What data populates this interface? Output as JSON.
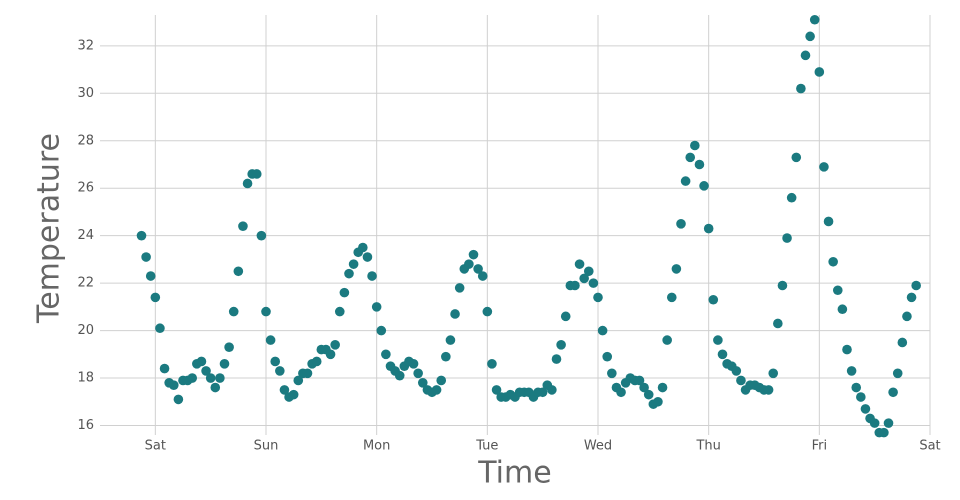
{
  "chart_data": {
    "type": "scatter",
    "x_label": "Time",
    "y_label": "Temperature",
    "color": "#1b7a80",
    "grid": true,
    "xlim": [
      -12,
      168
    ],
    "ylim": [
      15.6,
      33.3
    ],
    "xticks": [
      {
        "value": 0,
        "label": "Sat"
      },
      {
        "value": 24,
        "label": "Sun"
      },
      {
        "value": 48,
        "label": "Mon"
      },
      {
        "value": 72,
        "label": "Tue"
      },
      {
        "value": 96,
        "label": "Wed"
      },
      {
        "value": 120,
        "label": "Thu"
      },
      {
        "value": 144,
        "label": "Fri"
      },
      {
        "value": 168,
        "label": "Sat"
      }
    ],
    "yticks": [
      16,
      18,
      20,
      22,
      24,
      26,
      28,
      30,
      32
    ],
    "x": [
      -3,
      -2,
      -1,
      0,
      1,
      2,
      3,
      4,
      5,
      6,
      7,
      8,
      9,
      10,
      11,
      12,
      13,
      14,
      15,
      16,
      17,
      18,
      19,
      20,
      21,
      22,
      23,
      24,
      25,
      26,
      27,
      28,
      29,
      30,
      31,
      32,
      33,
      34,
      35,
      36,
      37,
      38,
      39,
      40,
      41,
      42,
      43,
      44,
      45,
      46,
      47,
      48,
      49,
      50,
      51,
      52,
      53,
      54,
      55,
      56,
      57,
      58,
      59,
      60,
      61,
      62,
      63,
      64,
      65,
      66,
      67,
      68,
      69,
      70,
      71,
      72,
      73,
      74,
      75,
      76,
      77,
      78,
      79,
      80,
      81,
      82,
      83,
      84,
      85,
      86,
      87,
      88,
      89,
      90,
      91,
      92,
      93,
      94,
      95,
      96,
      97,
      98,
      99,
      100,
      101,
      102,
      103,
      104,
      105,
      106,
      107,
      108,
      109,
      110,
      111,
      112,
      113,
      114,
      115,
      116,
      117,
      118,
      119,
      120,
      121,
      122,
      123,
      124,
      125,
      126,
      127,
      128,
      129,
      130,
      131,
      132,
      133,
      134,
      135,
      136,
      137,
      138,
      139,
      140,
      141,
      142,
      143,
      144,
      145,
      146,
      147,
      148,
      149,
      150,
      151,
      152,
      153,
      154,
      155,
      156,
      157,
      158,
      159,
      160,
      161,
      162,
      163,
      164,
      165
    ],
    "values": [
      24.0,
      23.1,
      22.3,
      21.4,
      20.1,
      18.4,
      17.8,
      17.7,
      17.1,
      17.9,
      17.9,
      18.0,
      18.6,
      18.7,
      18.3,
      18.0,
      17.6,
      18.0,
      18.6,
      19.3,
      20.8,
      22.5,
      24.4,
      26.2,
      26.6,
      26.6,
      24.0,
      20.8,
      19.6,
      18.7,
      18.3,
      17.5,
      17.2,
      17.3,
      17.9,
      18.2,
      18.2,
      18.6,
      18.7,
      19.2,
      19.2,
      19.0,
      19.4,
      20.8,
      21.6,
      22.4,
      22.8,
      23.3,
      23.5,
      23.1,
      22.3,
      21.0,
      20.0,
      19.0,
      18.5,
      18.3,
      18.1,
      18.5,
      18.7,
      18.6,
      18.2,
      17.8,
      17.5,
      17.4,
      17.5,
      17.9,
      18.9,
      19.6,
      20.7,
      21.8,
      22.6,
      22.8,
      23.2,
      22.6,
      22.3,
      20.8,
      18.6,
      17.5,
      17.2,
      17.2,
      17.3,
      17.2,
      17.4,
      17.4,
      17.4,
      17.2,
      17.4,
      17.4,
      17.7,
      17.5,
      18.8,
      19.4,
      20.6,
      21.9,
      21.9,
      22.8,
      22.2,
      22.5,
      22.0,
      21.4,
      20.0,
      18.9,
      18.2,
      17.6,
      17.4,
      17.8,
      18.0,
      17.9,
      17.9,
      17.6,
      17.3,
      16.9,
      17.0,
      17.6,
      19.6,
      21.4,
      22.6,
      24.5,
      26.3,
      27.3,
      27.8,
      27.0,
      26.1,
      24.3,
      21.3,
      19.6,
      19.0,
      18.6,
      18.5,
      18.3,
      17.9,
      17.5,
      17.7,
      17.7,
      17.6,
      17.5,
      17.5,
      18.2,
      20.3,
      21.9,
      23.9,
      25.6,
      27.3,
      30.2,
      31.6,
      32.4,
      33.1,
      30.9,
      26.9,
      24.6,
      22.9,
      21.7,
      20.9,
      19.2,
      18.3,
      17.6,
      17.2,
      16.7,
      16.3,
      16.1,
      15.7,
      15.7,
      16.1,
      17.4,
      18.2,
      19.5,
      20.6,
      21.4,
      21.9
    ]
  }
}
